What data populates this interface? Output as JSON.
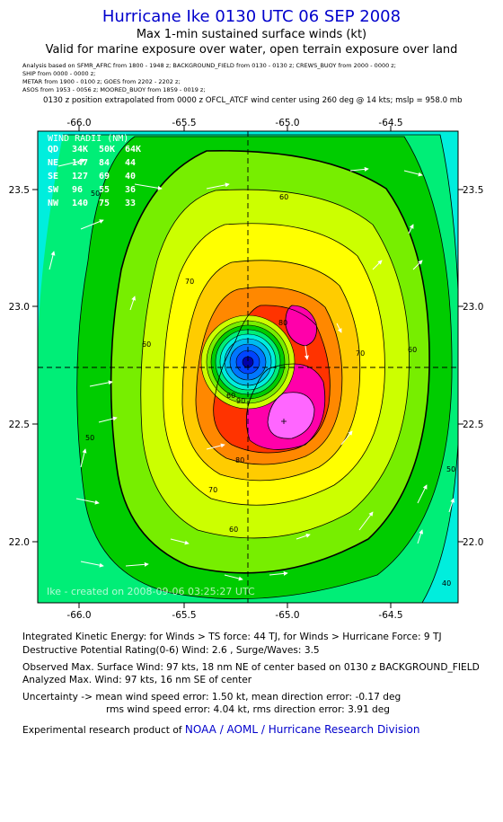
{
  "header": {
    "title": "Hurricane Ike 0130 UTC 06 SEP 2008",
    "subtitle1": "Max 1-min sustained surface winds (kt)",
    "subtitle2": "Valid for marine exposure over water, open terrain exposure over land"
  },
  "sources": [
    "Analysis based on  SFMR_AFRC from 1800 - 1948 z;  BACKGROUND_FIELD from 0130 - 0130 z;  CREWS_BUOY from 2000 - 0000 z;",
    "SHIP from 0000 - 0000 z;",
    "METAR from 1900 - 0100 z;  GOES from 2202 - 2202 z;",
    "ASOS from 1953 - 0056 z;  MOORED_BUOY from 1859 - 0019 z;"
  ],
  "position_note": "0130 z position extrapolated from 0000 z OFCL_ATCF wind center using 260 deg @ 14 kts; mslp = 958.0 mb",
  "map": {
    "lon_ticks": [
      "-66.0",
      "-65.5",
      "-65.0",
      "-64.5"
    ],
    "lat_ticks": [
      "23.5",
      "23.0",
      "22.5",
      "22.0"
    ],
    "contour_labels": [
      "90",
      "80",
      "80",
      "70",
      "70",
      "70",
      "60",
      "60",
      "60",
      "60",
      "60",
      "50",
      "50",
      "50",
      "40"
    ],
    "watermark": "Ike  -  created on 2008-09-06 03:25:27 UTC",
    "colors": {
      "cyan": "#00eedd",
      "spring": "#00ee77",
      "green": "#00cc00",
      "lime": "#77ee00",
      "yellowgreen": "#ccff00",
      "yellow": "#ffff00",
      "gold": "#ffcc00",
      "orange": "#ff8800",
      "red": "#ff3300",
      "magenta": "#ff00aa",
      "pink": "#ff66ff",
      "eye_blue": "#0044ff",
      "eye_dark": "#0000aa"
    }
  },
  "wind_radii": {
    "title": "WIND RADII (NM)",
    "header": [
      "QD",
      "34K",
      "50K",
      "64K"
    ],
    "rows": [
      [
        "NE",
        "147",
        "84",
        "44"
      ],
      [
        "SE",
        "127",
        "69",
        "40"
      ],
      [
        "SW",
        "96",
        "55",
        "36"
      ],
      [
        "NW",
        "140",
        "75",
        "33"
      ]
    ]
  },
  "footer": {
    "ike_line": "Integrated Kinetic Energy:  for Winds > TS force: 44 TJ,  for Winds > Hurricane Force: 9 TJ",
    "dpr_line": "Destructive Potential Rating(0-6)   Wind: 2.6 , Surge/Waves: 3.5",
    "obs_line": "Observed Max. Surface Wind: 97 kts, 18 nm NE of center based on 0130 z BACKGROUND_FIELD",
    "analyzed_line": "Analyzed Max. Wind: 97 kts, 16 nm SE of center",
    "uncertainty1": "Uncertainty -> mean wind speed error: 1.50 kt,   mean direction error:  -0.17 deg",
    "uncertainty2": "rms wind speed error: 4.04 kt,   rms direction error: 3.91 deg",
    "credit_prefix": "Experimental research product of",
    "credit_link": "NOAA / AOML / Hurricane Research Division"
  }
}
